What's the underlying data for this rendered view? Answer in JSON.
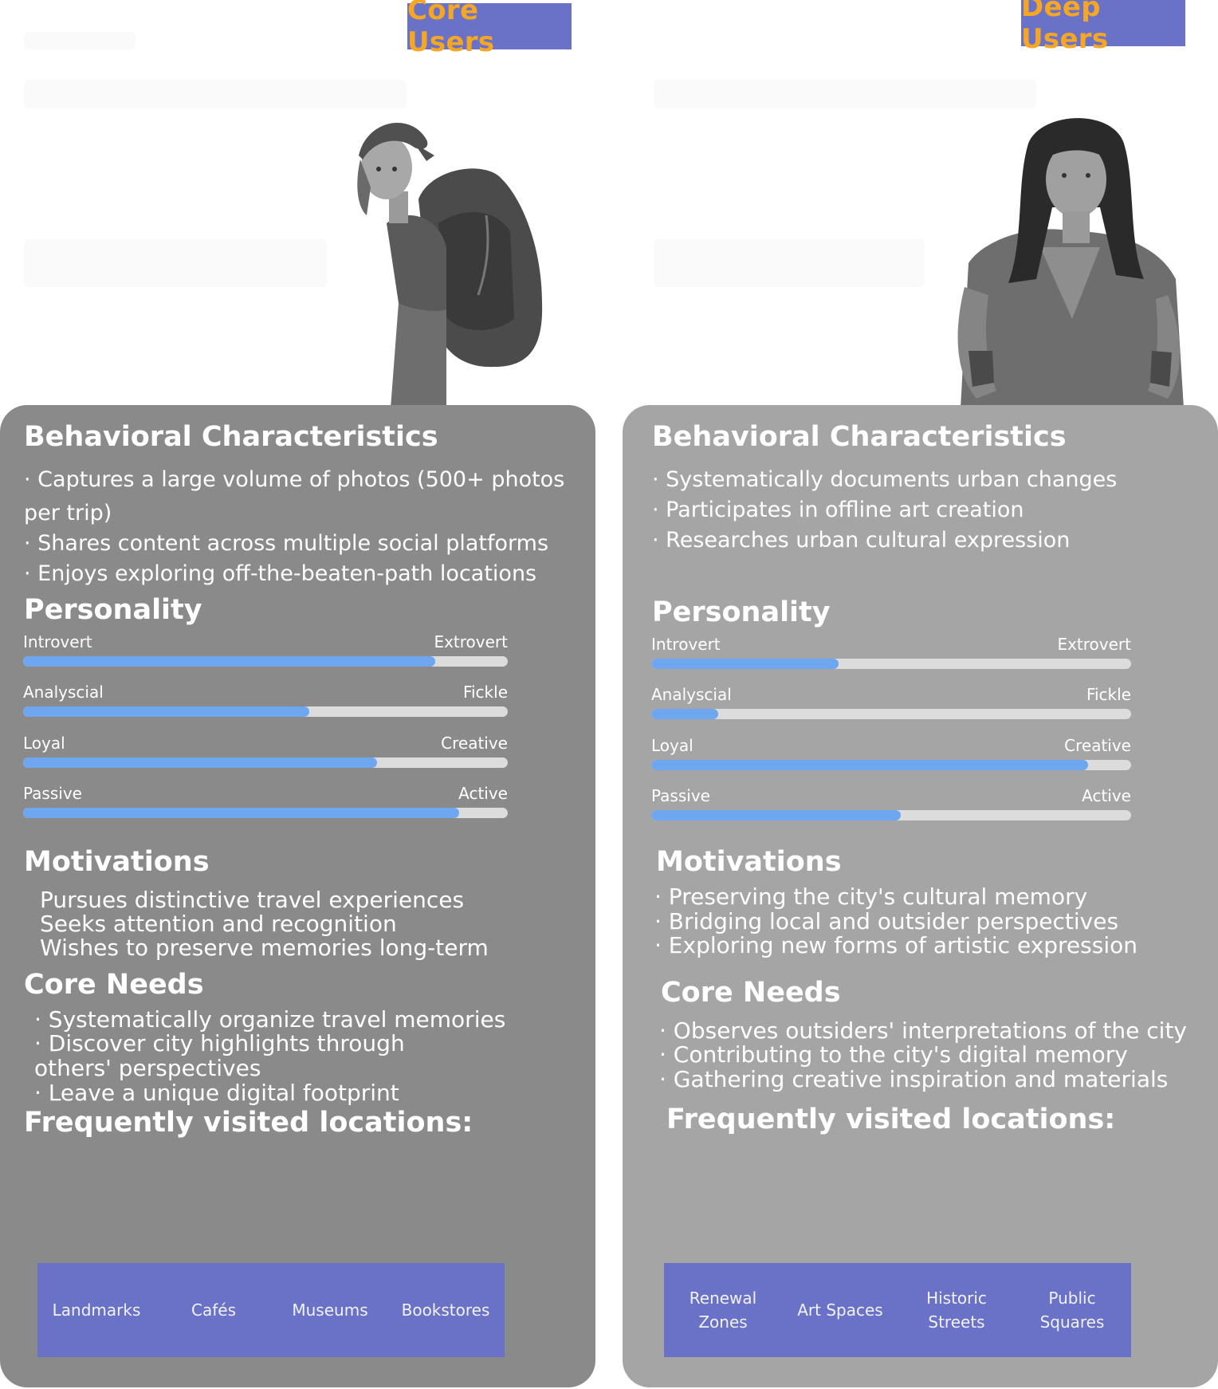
{
  "core": {
    "tag": "Core Users",
    "behavioral_title": "Behavioral Characteristics",
    "behaviors": [
      "· Captures a large volume of photos (500+ photos per trip)",
      "· Shares content across multiple social platforms",
      "· Enjoys exploring off-the-beaten-path locations"
    ],
    "personality_title": "Personality",
    "traits": [
      {
        "left": "Introvert",
        "right": "Extrovert",
        "value": 0.85
      },
      {
        "left": "Analyscial",
        "right": "Fickle",
        "value": 0.59
      },
      {
        "left": "Loyal",
        "right": "Creative",
        "value": 0.73
      },
      {
        "left": "Passive",
        "right": "Active",
        "value": 0.9
      }
    ],
    "motivations_title": "Motivations",
    "motivations": [
      "Pursues distinctive travel experiences",
      "Seeks attention and recognition",
      "Wishes to preserve memories long-term"
    ],
    "needs_title": "Core Needs",
    "needs": [
      "· Systematically organize travel memories",
      "· Discover city highlights through others' perspectives",
      "· Leave a unique digital footprint"
    ],
    "locations_title": "Frequently visited locations:",
    "locations": [
      "Landmarks",
      "Cafés",
      "Museums",
      "Bookstores"
    ]
  },
  "deep": {
    "tag": "Deep Users",
    "behavioral_title": "Behavioral Characteristics",
    "behaviors": [
      "· Systematically documents urban changes",
      "· Participates in offline art creation",
      "· Researches urban cultural expression"
    ],
    "personality_title": "Personality",
    "traits": [
      {
        "left": "Introvert",
        "right": "Extrovert",
        "value": 0.39
      },
      {
        "left": "Analyscial",
        "right": "Fickle",
        "value": 0.14
      },
      {
        "left": "Loyal",
        "right": "Creative",
        "value": 0.91
      },
      {
        "left": "Passive",
        "right": "Active",
        "value": 0.52
      }
    ],
    "motivations_title": "Motivations",
    "motivations": [
      "· Preserving the city's cultural memory",
      "· Bridging local and outsider perspectives",
      "· Exploring new forms of artistic expression"
    ],
    "needs_title": "Core Needs",
    "needs": [
      "· Observes outsiders' interpretations of the city",
      "· Contributing to the city's digital memory",
      "· Gathering creative inspiration and materials"
    ],
    "locations_title": "Frequently visited locations:",
    "locations": [
      "Renewal Zones",
      "Art Spaces",
      "Historic Streets",
      "Public Squares"
    ]
  },
  "colors": {
    "tag_bg": "#6a72c8",
    "tag_text": "#f5a623",
    "core_card": "#8a8a8a",
    "deep_card": "#a5a5a5",
    "bar_fill": "#6fa6f0",
    "bar_track": "#dcdcdc"
  }
}
